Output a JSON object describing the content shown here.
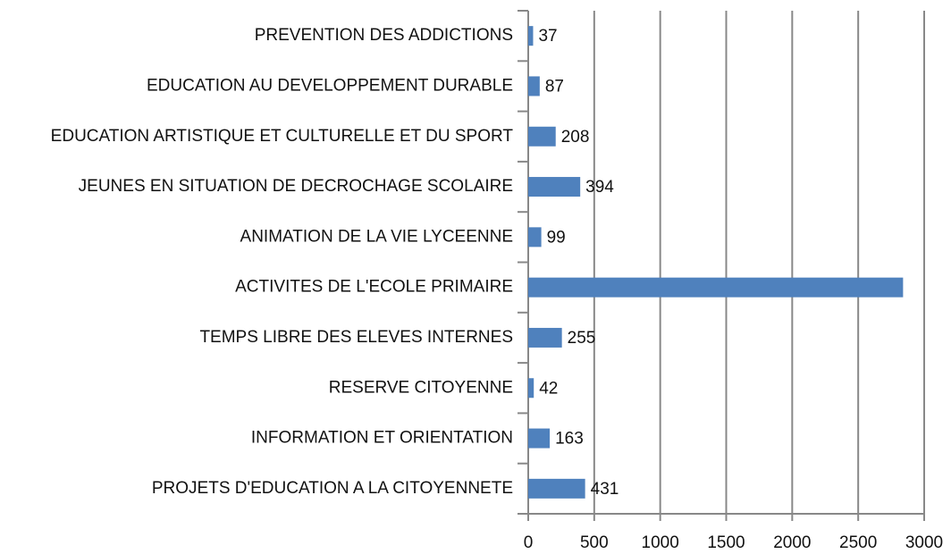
{
  "chart_data": {
    "type": "barh",
    "categories": [
      "PREVENTION DES ADDICTIONS",
      "EDUCATION AU DEVELOPPEMENT DURABLE",
      "EDUCATION ARTISTIQUE ET CULTURELLE ET DU SPORT",
      "JEUNES EN SITUATION DE DECROCHAGE SCOLAIRE",
      "ANIMATION DE LA VIE LYCEENNE",
      "ACTIVITES DE L'ECOLE PRIMAIRE",
      "TEMPS LIBRE DES ELEVES INTERNES",
      "RESERVE CITOYENNE",
      "INFORMATION ET ORIENTATION",
      "PROJETS D'EDUCATION A LA CITOYENNETE"
    ],
    "values": [
      37,
      87,
      208,
      394,
      99,
      2840,
      255,
      42,
      163,
      431
    ],
    "value_labels": [
      "37",
      "87",
      "208",
      "394",
      "99",
      null,
      "255",
      "42",
      "163",
      "431"
    ],
    "color": "#4f81bd",
    "xlim": [
      0,
      3000
    ],
    "xticks": [
      0,
      500,
      1000,
      1500,
      2000,
      2500,
      3000
    ],
    "grid": true
  }
}
